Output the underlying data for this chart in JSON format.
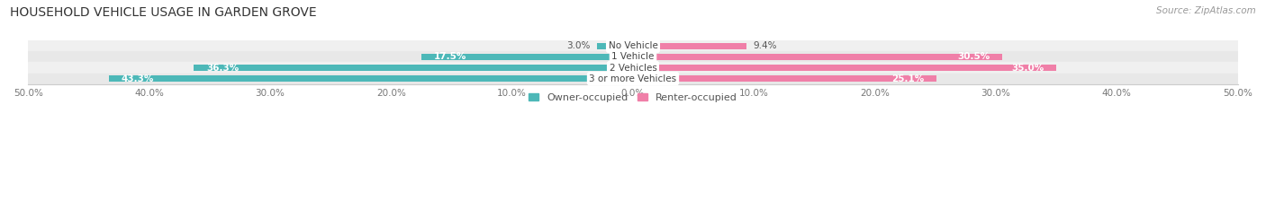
{
  "title": "HOUSEHOLD VEHICLE USAGE IN GARDEN GROVE",
  "source": "Source: ZipAtlas.com",
  "categories": [
    "No Vehicle",
    "1 Vehicle",
    "2 Vehicles",
    "3 or more Vehicles"
  ],
  "owner_values": [
    3.0,
    17.5,
    36.3,
    43.3
  ],
  "renter_values": [
    9.4,
    30.5,
    35.0,
    25.1
  ],
  "owner_color": "#4db8b8",
  "renter_color": "#f07fa8",
  "row_bg_colors": [
    "#f0f0f0",
    "#e8e8e8"
  ],
  "xlim": 50.0,
  "title_fontsize": 10,
  "source_fontsize": 7.5,
  "label_fontsize": 7.5,
  "tick_fontsize": 7.5,
  "legend_fontsize": 8,
  "bar_height": 0.62,
  "figsize": [
    14.06,
    2.33
  ],
  "dpi": 100
}
